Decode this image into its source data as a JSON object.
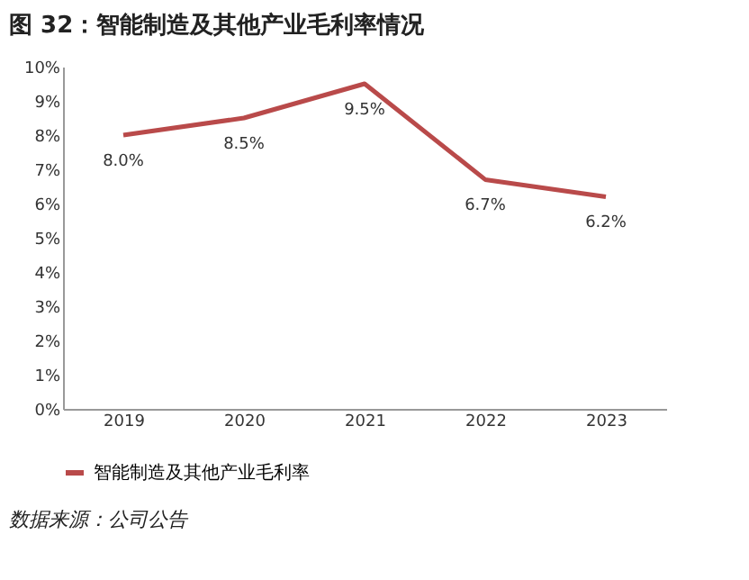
{
  "chart_data": {
    "type": "line",
    "title": "图 32：智能制造及其他产业毛利率情况",
    "categories": [
      "2019",
      "2020",
      "2021",
      "2022",
      "2023"
    ],
    "series": [
      {
        "name": "智能制造及其他产业毛利率",
        "color": "#b94a4a",
        "values": [
          8.0,
          8.5,
          9.5,
          6.7,
          6.2
        ],
        "value_labels": [
          "8.0%",
          "8.5%",
          "9.5%",
          "6.7%",
          "6.2%"
        ]
      }
    ],
    "ylim": [
      0,
      10
    ],
    "yticks": [
      {
        "value": 0,
        "label": "0%"
      },
      {
        "value": 1,
        "label": "1%"
      },
      {
        "value": 2,
        "label": "2%"
      },
      {
        "value": 3,
        "label": "3%"
      },
      {
        "value": 4,
        "label": "4%"
      },
      {
        "value": 5,
        "label": "5%"
      },
      {
        "value": 6,
        "label": "6%"
      },
      {
        "value": 7,
        "label": "7%"
      },
      {
        "value": 8,
        "label": "8%"
      },
      {
        "value": 9,
        "label": "9%"
      },
      {
        "value": 10,
        "label": "10%"
      }
    ],
    "grid": false,
    "legend": "bottom",
    "marker": "none",
    "line_style": "solid",
    "annotations": [
      "数据来源：公司公告"
    ]
  }
}
